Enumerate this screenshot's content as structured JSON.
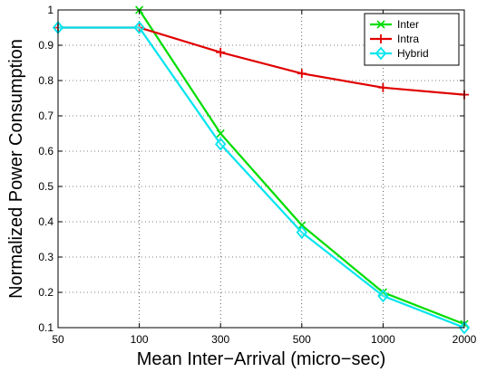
{
  "chart_data": {
    "type": "line",
    "title": "",
    "xlabel": "Mean Inter−Arrival (micro−sec)",
    "ylabel": "Normalized Power Consumption",
    "categories": [
      "50",
      "100",
      "300",
      "500",
      "1000",
      "2000"
    ],
    "ylim": [
      0.1,
      1.0
    ],
    "yticks": [
      "0.1",
      "0.2",
      "0.3",
      "0.4",
      "0.5",
      "0.6",
      "0.7",
      "0.8",
      "0.9",
      "1"
    ],
    "grid": true,
    "legend_position": "top-right",
    "series": [
      {
        "name": "Inter",
        "color": "#00dd00",
        "marker": "x-icon",
        "values": [
          null,
          1.0,
          0.65,
          0.39,
          0.2,
          0.11
        ]
      },
      {
        "name": "Intra",
        "color": "#e00000",
        "marker": "plus-icon",
        "values": [
          0.95,
          0.95,
          0.88,
          0.82,
          0.78,
          0.76
        ]
      },
      {
        "name": "Hybrid",
        "color": "#00e5ee",
        "marker": "diamond-icon",
        "values": [
          0.95,
          0.95,
          0.62,
          0.37,
          0.19,
          0.1
        ]
      }
    ]
  }
}
